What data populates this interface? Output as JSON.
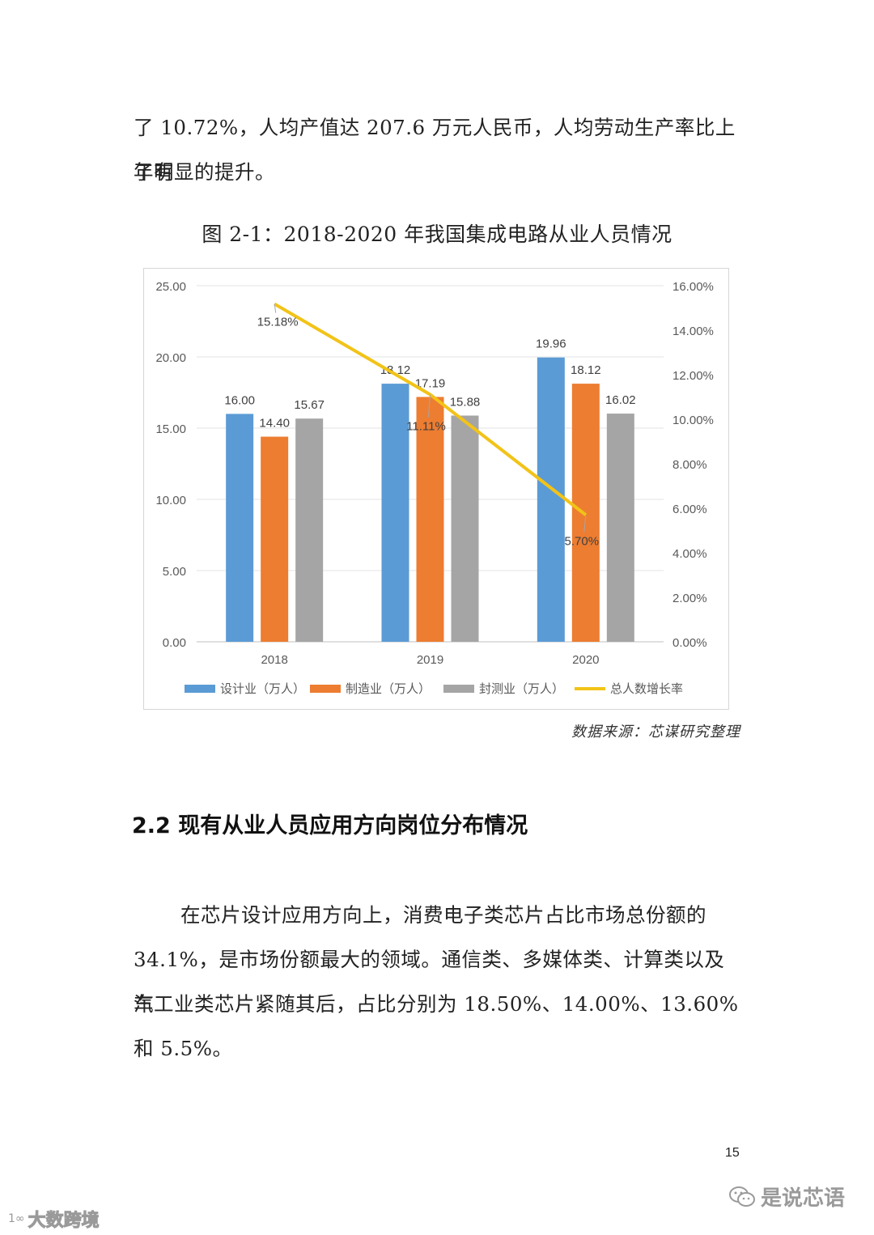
{
  "intro_paragraph": {
    "line1": "了 10.72%，人均产值达 207.6 万元人民币，人均劳动生产率比上年有",
    "line2": "了明显的提升。"
  },
  "figure_title": "图 2-1：2018-2020 年我国集成电路从业人员情况",
  "chart_data": {
    "type": "bar",
    "categories": [
      "2018",
      "2019",
      "2020"
    ],
    "series": [
      {
        "name": "设计业（万人）",
        "type": "bar",
        "axis": "left",
        "color": "#5b9bd5",
        "values": [
          16.0,
          18.12,
          19.96
        ],
        "labels": [
          "16.00",
          "18.12",
          "19.96"
        ]
      },
      {
        "name": "制造业（万人）",
        "type": "bar",
        "axis": "left",
        "color": "#ed7d31",
        "values": [
          14.4,
          17.19,
          18.12
        ],
        "labels": [
          "14.40",
          "17.19",
          "18.12"
        ]
      },
      {
        "name": "封测业（万人）",
        "type": "bar",
        "axis": "left",
        "color": "#a5a5a5",
        "values": [
          15.67,
          15.88,
          16.02
        ],
        "labels": [
          "15.67",
          "15.88",
          "16.02"
        ]
      },
      {
        "name": "总人数增长率",
        "type": "line",
        "axis": "right",
        "color": "#f2c318",
        "values": [
          15.18,
          11.11,
          5.7
        ],
        "labels": [
          "15.18%",
          "11.11%",
          "5.70%"
        ]
      }
    ],
    "y_left": {
      "min": 0,
      "max": 25,
      "ticks": [
        "0.00",
        "5.00",
        "10.00",
        "15.00",
        "20.00",
        "25.00"
      ]
    },
    "y_right": {
      "min": 0,
      "max": 16,
      "ticks": [
        "0.00%",
        "2.00%",
        "4.00%",
        "6.00%",
        "8.00%",
        "10.00%",
        "12.00%",
        "14.00%",
        "16.00%"
      ]
    },
    "grid": true,
    "legend": "bottom"
  },
  "source_note": "数据来源：芯谋研究整理",
  "section_heading": "2.2 现有从业人员应用方向岗位分布情况",
  "body_paragraph": {
    "line1": "在芯片设计应用方向上，消费电子类芯片占比市场总份额的",
    "line2": "34.1%，是市场份额最大的领域。通信类、多媒体类、计算类以及汽",
    "line3": "车工业类芯片紧随其后，占比分别为 18.50%、14.00%、13.60%和 5.5%。"
  },
  "page_number": "15",
  "watermark_right": "是说芯语",
  "watermark_left": "大数跨境",
  "watermark_left_logo": "1∞"
}
